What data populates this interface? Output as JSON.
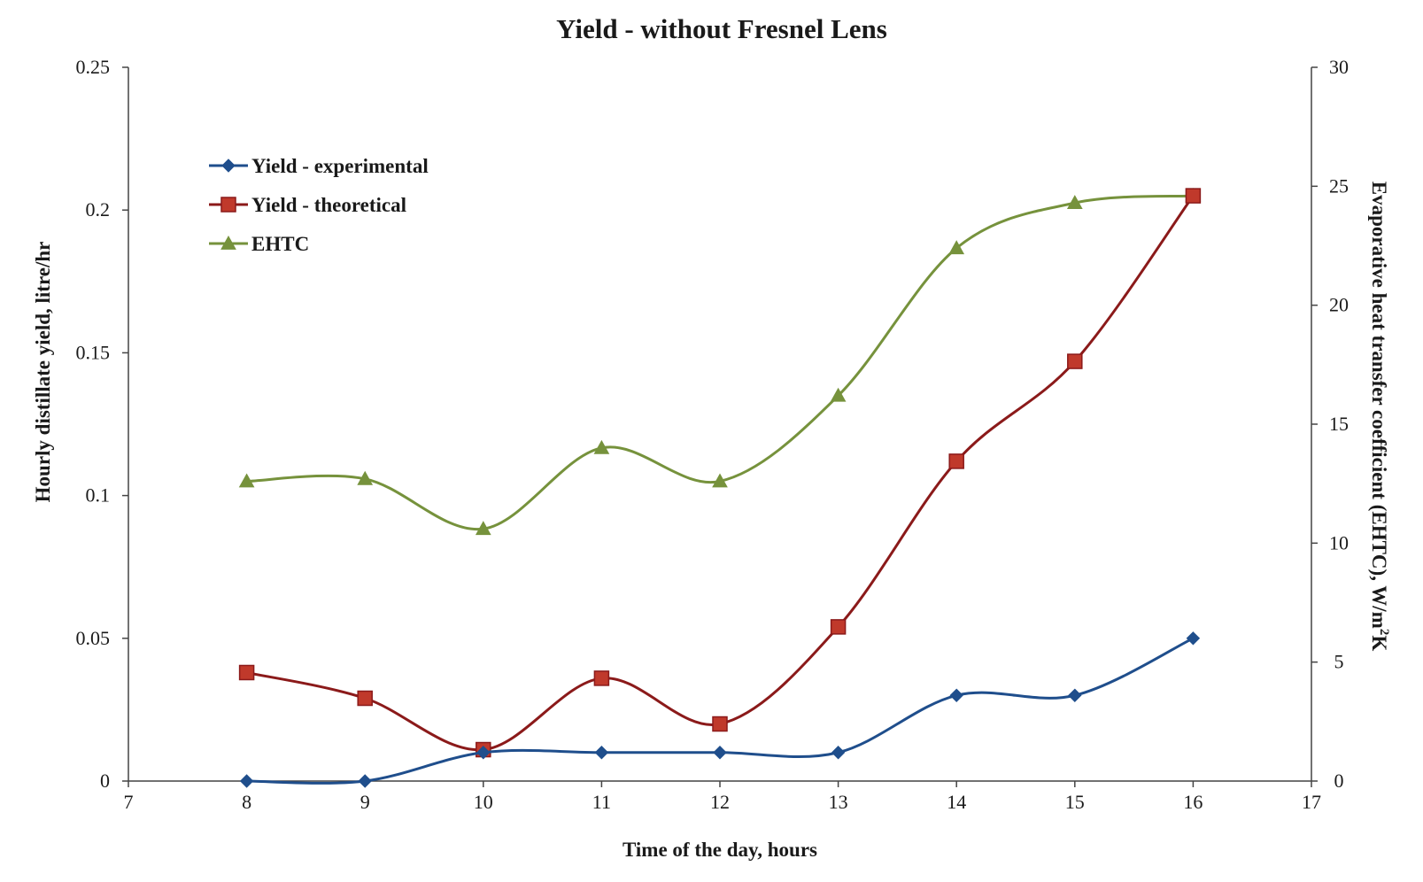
{
  "chart_data": {
    "type": "line",
    "title": "Yield - without Fresnel Lens",
    "xlabel": "Time of the day, hours",
    "ylabel_left": "Hourly  distillate yield, litre/hr",
    "ylabel_right_main": "Evaporative heat transfer coefficient (EHTC), W/m",
    "ylabel_right_sup": "2",
    "ylabel_right_tail": "K",
    "xlim": [
      7,
      17
    ],
    "x_ticks": [
      7,
      8,
      9,
      10,
      11,
      12,
      13,
      14,
      15,
      16,
      17
    ],
    "ylim_left": [
      0,
      0.25
    ],
    "y_left_ticks": [
      0,
      0.05,
      0.1,
      0.15,
      0.2,
      0.25
    ],
    "ylim_right": [
      0,
      30
    ],
    "y_right_ticks": [
      0,
      5,
      10,
      15,
      20,
      25,
      30
    ],
    "grid": false,
    "legend_position": "upper-left",
    "x": [
      8,
      9,
      10,
      11,
      12,
      13,
      14,
      15,
      16
    ],
    "series": [
      {
        "name": "Yield - experimental",
        "axis": "left",
        "marker": "diamond",
        "color": "#1f4e8c",
        "values": [
          0,
          0,
          0.01,
          0.01,
          0.01,
          0.01,
          0.03,
          0.03,
          0.05
        ]
      },
      {
        "name": "Yield - theoretical",
        "axis": "left",
        "marker": "square",
        "color": "#8b1a1a",
        "marker_fill": "#c0392b",
        "values": [
          0.038,
          0.029,
          0.011,
          0.036,
          0.02,
          0.054,
          0.112,
          0.147,
          0.205
        ]
      },
      {
        "name": "EHTC",
        "axis": "right",
        "marker": "triangle",
        "color": "#76923c",
        "values": [
          12.6,
          12.7,
          10.6,
          14.0,
          12.6,
          16.2,
          22.4,
          24.3,
          24.6
        ]
      }
    ]
  }
}
